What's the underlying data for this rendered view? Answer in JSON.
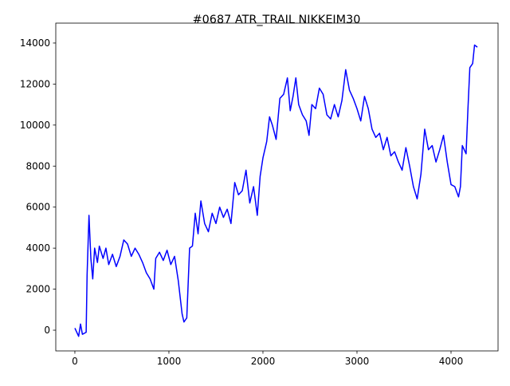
{
  "chart_data": {
    "type": "line",
    "title": "#0687 ATR_TRAIL NIKKEIM30",
    "x": [
      0,
      20,
      40,
      60,
      80,
      120,
      130,
      150,
      170,
      190,
      210,
      240,
      260,
      300,
      330,
      360,
      400,
      440,
      480,
      520,
      560,
      600,
      640,
      680,
      720,
      760,
      800,
      840,
      860,
      900,
      940,
      980,
      1020,
      1060,
      1100,
      1140,
      1160,
      1190,
      1220,
      1250,
      1280,
      1310,
      1340,
      1380,
      1420,
      1460,
      1500,
      1540,
      1580,
      1620,
      1660,
      1700,
      1740,
      1780,
      1820,
      1860,
      1900,
      1940,
      1970,
      2000,
      2040,
      2070,
      2100,
      2140,
      2180,
      2220,
      2260,
      2290,
      2320,
      2350,
      2380,
      2420,
      2460,
      2490,
      2520,
      2560,
      2600,
      2640,
      2680,
      2720,
      2760,
      2800,
      2840,
      2880,
      2920,
      2960,
      3000,
      3040,
      3080,
      3120,
      3160,
      3200,
      3240,
      3280,
      3320,
      3360,
      3400,
      3440,
      3480,
      3520,
      3560,
      3600,
      3640,
      3680,
      3720,
      3760,
      3800,
      3840,
      3880,
      3920,
      3960,
      4000,
      4040,
      4080,
      4100,
      4120,
      4160,
      4180,
      4200,
      4230,
      4250,
      4280
    ],
    "series": [
      {
        "color": "#0000ff",
        "values": [
          100,
          -100,
          -300,
          300,
          -200,
          -100,
          2700,
          5600,
          3500,
          2500,
          4000,
          3300,
          4100,
          3500,
          4000,
          3200,
          3700,
          3100,
          3600,
          4400,
          4200,
          3600,
          4000,
          3700,
          3300,
          2800,
          2500,
          2000,
          3500,
          3800,
          3400,
          3900,
          3200,
          3600,
          2400,
          800,
          400,
          600,
          4000,
          4100,
          5700,
          4700,
          6300,
          5200,
          4800,
          5700,
          5200,
          6000,
          5500,
          5900,
          5200,
          7200,
          6600,
          6800,
          7800,
          6200,
          7000,
          5600,
          7500,
          8400,
          9200,
          10400,
          10000,
          9300,
          11300,
          11500,
          12300,
          10700,
          11400,
          12300,
          11000,
          10500,
          10200,
          9500,
          11000,
          10800,
          11800,
          11500,
          10500,
          10300,
          11000,
          10400,
          11200,
          12700,
          11700,
          11300,
          10800,
          10200,
          11400,
          10800,
          9800,
          9400,
          9600,
          8800,
          9400,
          8500,
          8700,
          8200,
          7800,
          8900,
          8000,
          7000,
          6400,
          7600,
          9800,
          8800,
          9000,
          8200,
          8800,
          9500,
          8200,
          7100,
          7000,
          6500,
          7000,
          9000,
          8600,
          10800,
          12800,
          13000,
          13900,
          13800
        ]
      }
    ],
    "xlim": [
      -203,
      4500
    ],
    "ylim": [
      -1010,
      14970
    ],
    "xticks": [
      0,
      1000,
      2000,
      3000,
      4000
    ],
    "yticks": [
      0,
      2000,
      4000,
      6000,
      8000,
      10000,
      12000,
      14000
    ]
  }
}
